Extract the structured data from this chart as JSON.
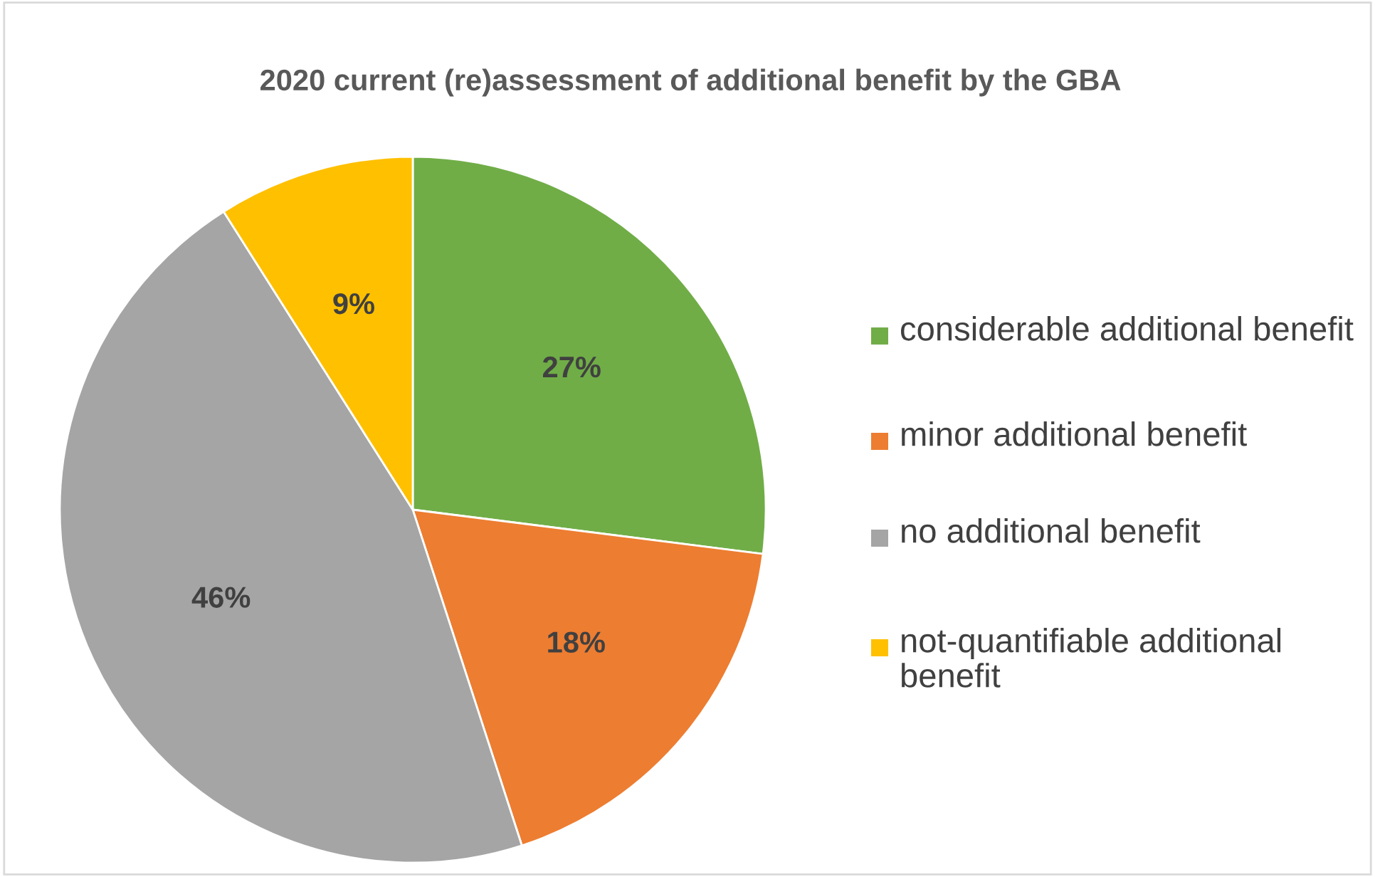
{
  "chart_data": {
    "type": "pie",
    "title": "2020 current (re)assessment of additional benefit by the GBA",
    "categories": [
      "considerable additional benefit",
      "minor additional benefit",
      "no additional benefit",
      "not-quantifiable additional benefit"
    ],
    "values": [
      27,
      18,
      46,
      9
    ],
    "colors": [
      "#70ad47",
      "#ed7d31",
      "#a5a5a5",
      "#ffc000"
    ],
    "value_labels": [
      "27%",
      "18%",
      "46%",
      "9%"
    ],
    "legend": "right"
  }
}
